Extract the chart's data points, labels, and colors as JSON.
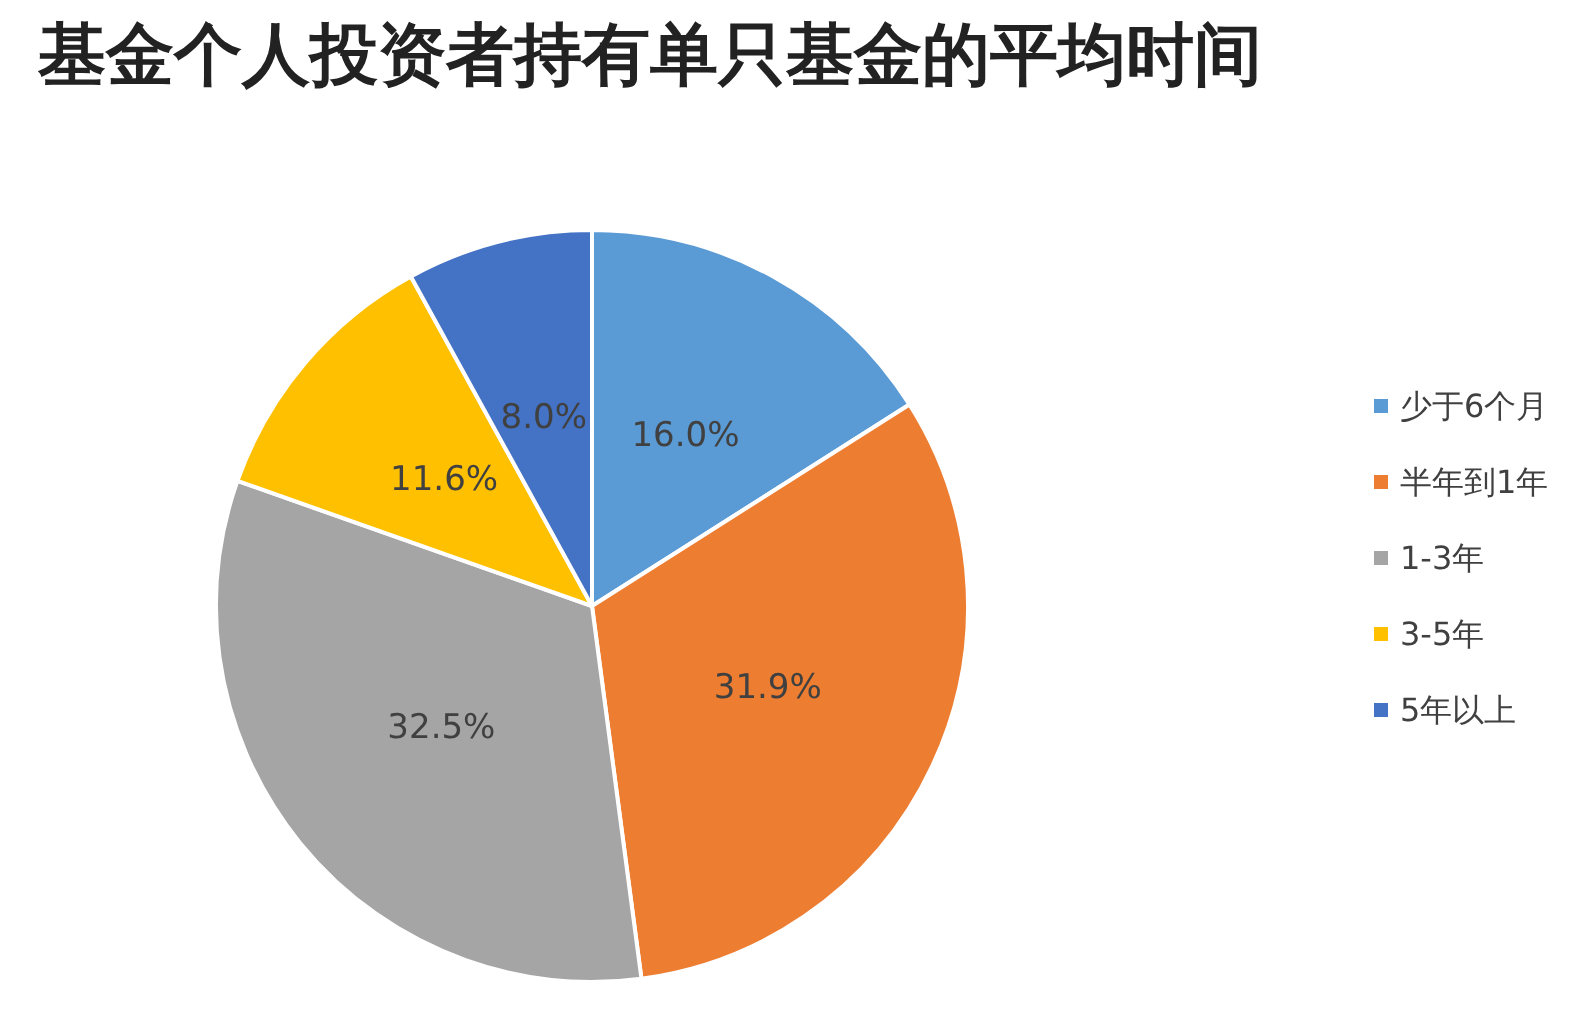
{
  "chart_data": {
    "type": "pie",
    "title": "基金个人投资者持有单只基金的平均时间",
    "categories": [
      "少于6个月",
      "半年到1年",
      "1-3年",
      "3-5年",
      "5年以上"
    ],
    "values": [
      16.0,
      31.9,
      32.5,
      11.6,
      8.0
    ],
    "value_labels": [
      "16.0%",
      "31.9%",
      "32.5%",
      "11.6%",
      "8.0%"
    ],
    "colors": [
      "#5b9bd5",
      "#ed7d31",
      "#a5a5a5",
      "#ffc000",
      "#4472c4"
    ],
    "legend": "right"
  }
}
